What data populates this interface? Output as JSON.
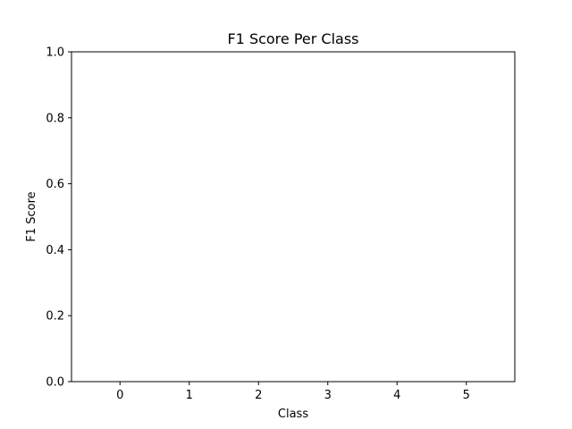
{
  "chart_data": {
    "type": "bar",
    "title": "F1 Score Per Class",
    "xlabel": "Class",
    "ylabel": "F1 Score",
    "categories": [
      "0",
      "1",
      "2",
      "3",
      "4",
      "5"
    ],
    "values": [
      0,
      0,
      0,
      0,
      0,
      0
    ],
    "ylim": [
      0,
      1.0
    ],
    "xlim": [
      -0.7,
      5.7
    ],
    "yticks": [
      "0.0",
      "0.2",
      "0.4",
      "0.6",
      "0.8",
      "1.0"
    ],
    "grid": false,
    "legend": "none",
    "colors": {
      "axes": "#000000",
      "bar": "#1f77b4",
      "background": "#ffffff"
    }
  }
}
